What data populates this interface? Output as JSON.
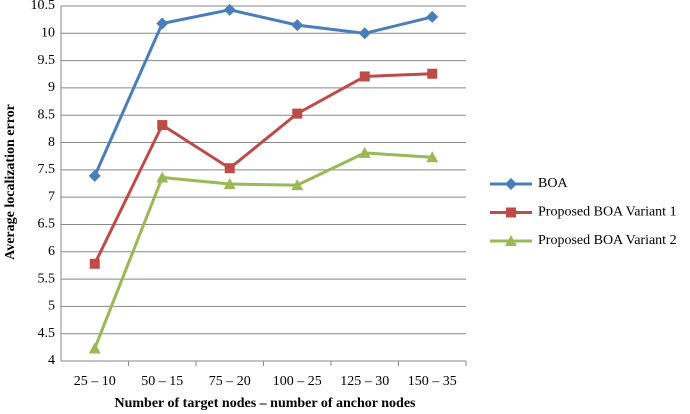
{
  "chart_data": {
    "type": "line",
    "x_label": "Number of target nodes – number of anchor nodes",
    "y_label": "Average localization error",
    "categories": [
      "25 – 10",
      "50 – 15",
      "75 – 20",
      "100 – 25",
      "125 – 30",
      "150 – 35"
    ],
    "series": [
      {
        "name": "BOA",
        "color": "#4a7ebb",
        "marker": "diamond",
        "values": [
          7.39,
          10.18,
          10.43,
          10.15,
          10.0,
          10.3
        ]
      },
      {
        "name": "Proposed BOA Variant 1",
        "color": "#be4b48",
        "marker": "square",
        "values": [
          5.78,
          8.32,
          7.53,
          8.53,
          9.21,
          9.26
        ]
      },
      {
        "name": "Proposed BOA Variant 2",
        "color": "#98b954",
        "marker": "triangle",
        "values": [
          4.23,
          7.36,
          7.24,
          7.22,
          7.81,
          7.73
        ]
      }
    ],
    "ylim": [
      4,
      10.5
    ],
    "yticks": [
      4,
      4.5,
      5,
      5.5,
      6,
      6.5,
      7,
      7.5,
      8,
      8.5,
      9,
      9.5,
      10,
      10.5
    ],
    "grid": true,
    "legend": "right"
  }
}
